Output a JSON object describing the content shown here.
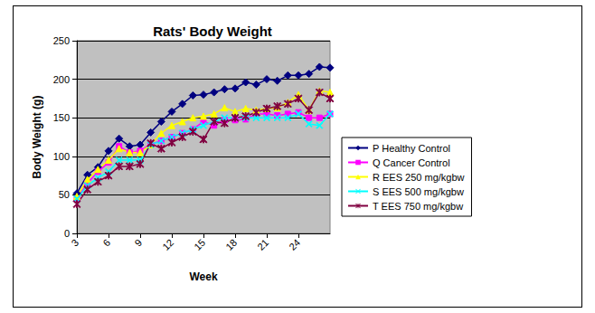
{
  "chart_data": {
    "type": "line",
    "title": "Rats' Body Weight",
    "x_label": "Week",
    "y_label": "Body Weight (g)",
    "x": [
      3,
      4,
      5,
      6,
      7,
      8,
      9,
      10,
      11,
      12,
      13,
      14,
      15,
      16,
      17,
      18,
      19,
      20,
      21,
      22,
      23,
      24,
      25,
      26,
      27
    ],
    "series": [
      {
        "name": "P Healthy Control",
        "color": "#000080",
        "marker": "diamond",
        "values": [
          52,
          76,
          86,
          107,
          123,
          113,
          115,
          131,
          145,
          158,
          168,
          179,
          180,
          183,
          187,
          188,
          196,
          193,
          200,
          198,
          205,
          205,
          207,
          216,
          215
        ]
      },
      {
        "name": "Q Cancer Control",
        "color": "#ff00ff",
        "marker": "square",
        "values": [
          45,
          65,
          80,
          92,
          113,
          105,
          107,
          116,
          120,
          125,
          130,
          135,
          145,
          140,
          147,
          147,
          148,
          155,
          155,
          153,
          155,
          157,
          150,
          150,
          155
        ]
      },
      {
        "name": "R EES 250 mg/kgbw",
        "color": "#ffff00",
        "marker": "triangle",
        "values": [
          48,
          70,
          83,
          95,
          110,
          105,
          105,
          115,
          130,
          140,
          145,
          150,
          152,
          155,
          163,
          158,
          162,
          160,
          162,
          163,
          170,
          180,
          160,
          185,
          183
        ]
      },
      {
        "name": "S EES 500 mg/kgbw",
        "color": "#00ffff",
        "marker": "x",
        "values": [
          45,
          62,
          72,
          80,
          95,
          95,
          95,
          115,
          120,
          125,
          130,
          135,
          140,
          145,
          150,
          150,
          150,
          150,
          150,
          150,
          150,
          155,
          142,
          140,
          155
        ]
      },
      {
        "name": "T EES 750 mg/kgbw",
        "color": "#800040",
        "marker": "star",
        "values": [
          38,
          57,
          67,
          75,
          87,
          87,
          90,
          117,
          110,
          118,
          125,
          132,
          122,
          145,
          143,
          150,
          152,
          157,
          162,
          165,
          168,
          175,
          160,
          183,
          175
        ]
      }
    ],
    "xlim": [
      3,
      27
    ],
    "xticks": [
      3,
      6,
      9,
      12,
      15,
      18,
      21,
      24
    ],
    "ylim": [
      0,
      250
    ],
    "yticks": [
      0,
      50,
      100,
      150,
      200,
      250
    ],
    "grid": true,
    "legend": "right"
  }
}
